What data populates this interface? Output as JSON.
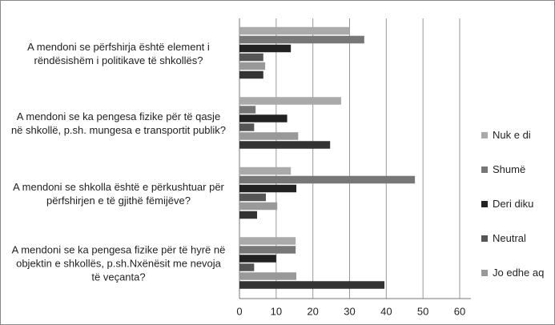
{
  "chart_data": {
    "type": "hbar",
    "categories": [
      "A mendoni se përfshirja është element i rëndësishëm i politikave të shkollës?",
      "A mendoni se ka pengesa fizike për të qasje në shkollë, p.sh. mungesa e transportit publik?",
      "A mendoni se shkolla është e përkushtuar për përfshirjen e të gjithë fëmijëve?",
      "A mendoni se ka pengesa fizike për të hyrë në objektin e shkollës, p.sh.Nxënësit me nevoja të veçanta?"
    ],
    "series": [
      {
        "name": "Nuk e di",
        "color": "#aaaaaa",
        "values": [
          30,
          27.7,
          14,
          15.3
        ]
      },
      {
        "name": "Shumë",
        "color": "#777777",
        "values": [
          34,
          4.4,
          47.8,
          15.3
        ]
      },
      {
        "name": "Deri diku",
        "color": "#222222",
        "values": [
          14,
          13,
          15.5,
          10
        ]
      },
      {
        "name": "Neutral",
        "color": "#555555",
        "values": [
          6.5,
          4,
          7.2,
          4
        ]
      },
      {
        "name": "Jo edhe aq",
        "color": "#999999",
        "values": [
          7,
          16,
          10.3,
          15.5
        ]
      },
      {
        "color": "#333333",
        "values": [
          6.5,
          24.7,
          4.8,
          39.5
        ]
      }
    ],
    "xlim": [
      0,
      60
    ],
    "xticks": [
      0,
      10,
      20,
      30,
      40,
      50,
      60
    ],
    "grid": true
  }
}
